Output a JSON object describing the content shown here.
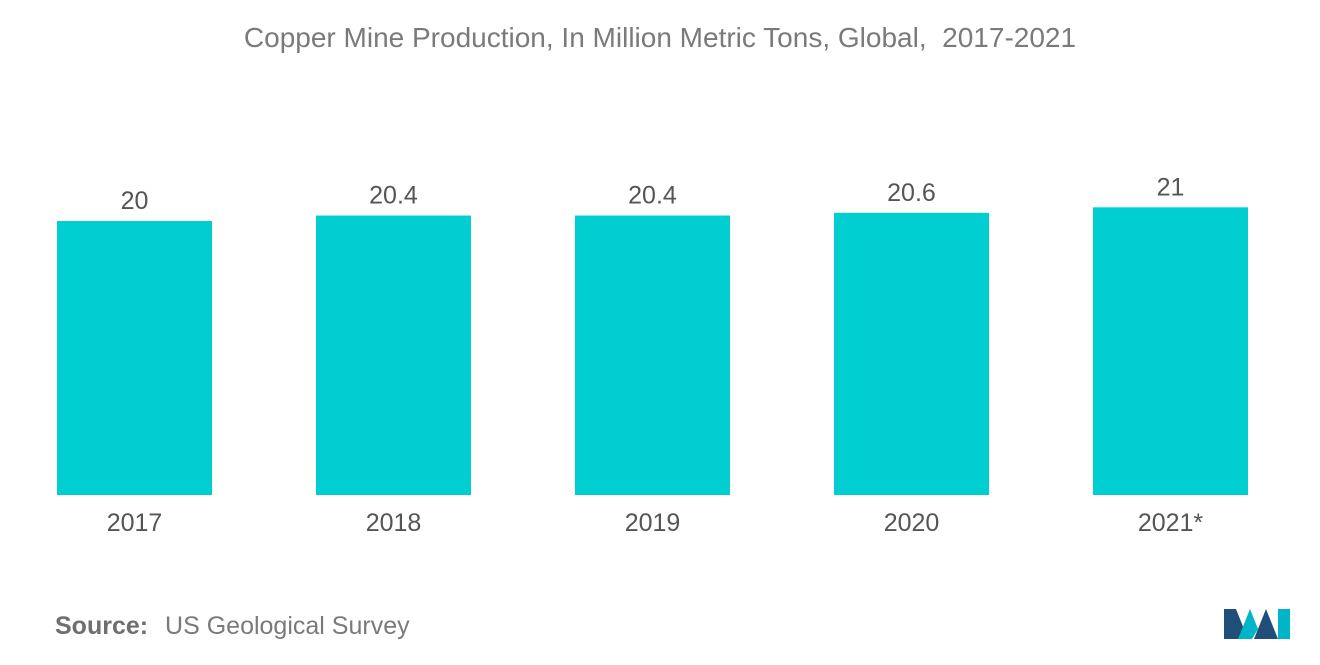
{
  "chart_data": {
    "type": "bar",
    "title": "Copper Mine Production, In Million Metric Tons, Global,  2017-2021",
    "categories": [
      "2017",
      "2018",
      "2019",
      "2020",
      "2021*"
    ],
    "values": [
      20,
      20.4,
      20.4,
      20.6,
      21
    ],
    "data_labels": [
      "20",
      "20.4",
      "20.4",
      "20.6",
      "21"
    ],
    "xlabel": "",
    "ylabel": "",
    "ylim": [
      0,
      21.9
    ],
    "grid": false,
    "legend": "none",
    "bar_color": "#00ced1"
  },
  "source": {
    "label": "Source:",
    "text": "US Geological Survey"
  },
  "colors": {
    "text": "#7a7a7a",
    "axis_text": "#555555",
    "logo_dark": "#1f4e79",
    "logo_light": "#00b5c8"
  },
  "logo": {
    "icon": "mordor-logo-icon"
  }
}
